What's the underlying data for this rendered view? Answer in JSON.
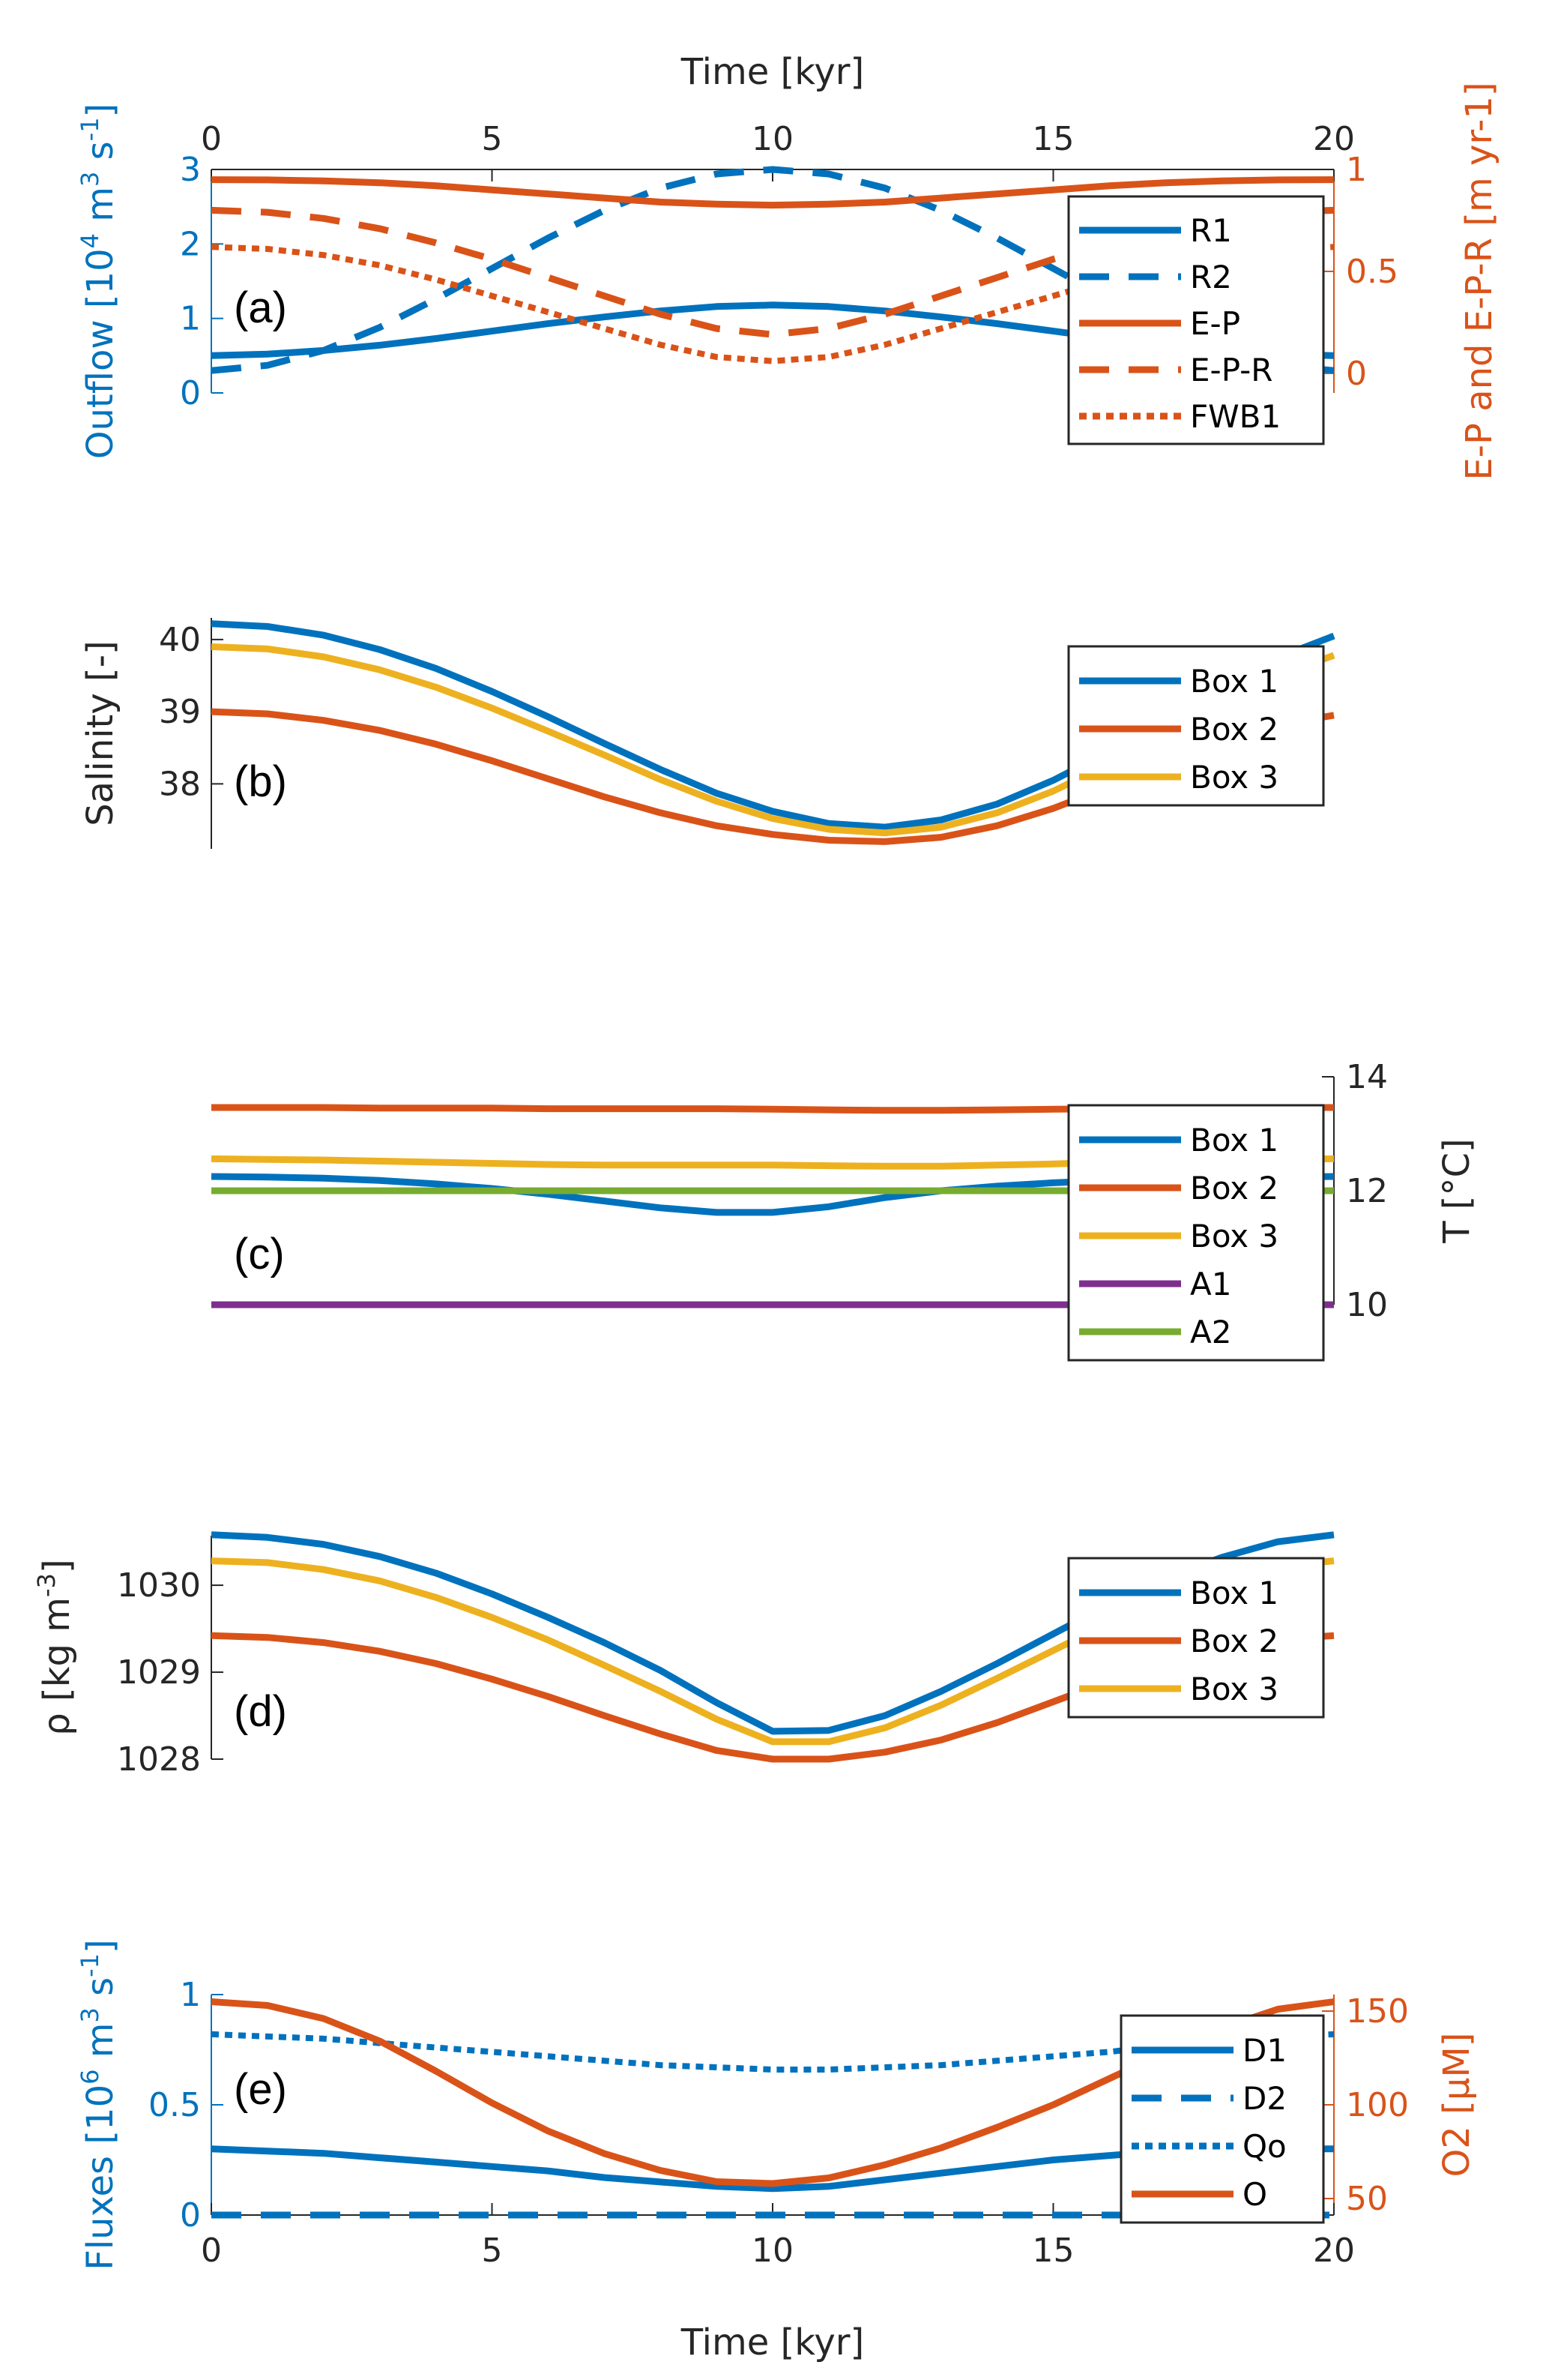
{
  "colors": {
    "blue": "#0072BD",
    "orange": "#D95319",
    "yellow": "#EDB120",
    "purple": "#7E2F8E",
    "green": "#77AC30",
    "axis": "#262626"
  },
  "chart_data": [
    {
      "id": "a",
      "type": "line",
      "panel_label": "(a)",
      "xlabel": "Time [kyr]",
      "xlabel_position": "top",
      "x_ticks": [
        0,
        5,
        10,
        15,
        20
      ],
      "xlim": [
        0,
        20
      ],
      "ylabel_left": "Outflow [10^4 m^3 s^-1]",
      "ylim_left": [
        0,
        3
      ],
      "y_ticks_left": [
        0,
        1,
        2,
        3
      ],
      "ylabel_right": "E-P and E-P-R [m yr-1]",
      "ylim_right": [
        -0.096,
        1
      ],
      "y_ticks_right": [
        0,
        0.5,
        1
      ],
      "legend": "right",
      "x": [
        0,
        1,
        2,
        3,
        4,
        5,
        6,
        7,
        8,
        9,
        10,
        11,
        12,
        13,
        14,
        15,
        16,
        17,
        18,
        19,
        20
      ],
      "series": [
        {
          "name": "R1",
          "axis": "left",
          "color": "blue",
          "style": "solid",
          "values": [
            0.5,
            0.52,
            0.57,
            0.64,
            0.73,
            0.83,
            0.93,
            1.02,
            1.1,
            1.16,
            1.18,
            1.16,
            1.1,
            1.02,
            0.93,
            0.83,
            0.73,
            0.64,
            0.57,
            0.52,
            0.5
          ]
        },
        {
          "name": "R2",
          "axis": "left",
          "color": "blue",
          "style": "dashed",
          "values": [
            0.3,
            0.37,
            0.57,
            0.88,
            1.26,
            1.67,
            2.08,
            2.45,
            2.75,
            2.94,
            3.0,
            2.94,
            2.75,
            2.45,
            2.08,
            1.67,
            1.26,
            0.88,
            0.57,
            0.37,
            0.3
          ]
        },
        {
          "name": "E-P",
          "axis": "right",
          "color": "orange",
          "style": "solid",
          "values": [
            0.95,
            0.949,
            0.944,
            0.935,
            0.92,
            0.9,
            0.88,
            0.86,
            0.84,
            0.83,
            0.825,
            0.83,
            0.84,
            0.86,
            0.88,
            0.9,
            0.92,
            0.935,
            0.944,
            0.949,
            0.95
          ]
        },
        {
          "name": "E-P-R",
          "axis": "right",
          "color": "orange",
          "style": "dashed",
          "values": [
            0.8,
            0.79,
            0.76,
            0.71,
            0.64,
            0.56,
            0.47,
            0.38,
            0.29,
            0.22,
            0.19,
            0.22,
            0.29,
            0.38,
            0.47,
            0.56,
            0.64,
            0.71,
            0.76,
            0.79,
            0.8
          ]
        },
        {
          "name": "FWB1",
          "axis": "right",
          "color": "orange",
          "style": "dotted",
          "values": [
            0.62,
            0.61,
            0.58,
            0.53,
            0.46,
            0.38,
            0.3,
            0.22,
            0.14,
            0.08,
            0.06,
            0.08,
            0.14,
            0.22,
            0.3,
            0.38,
            0.46,
            0.53,
            0.58,
            0.61,
            0.62
          ]
        }
      ]
    },
    {
      "id": "b",
      "type": "line",
      "panel_label": "(b)",
      "xlim": [
        0,
        20
      ],
      "ylabel_left": "Salinity [-]",
      "ylim_left": [
        37.1,
        40.3
      ],
      "y_ticks_left": [
        38,
        39,
        40
      ],
      "legend": "right",
      "x": [
        0,
        1,
        2,
        3,
        4,
        5,
        6,
        7,
        8,
        9,
        10,
        11,
        12,
        13,
        14,
        15,
        16,
        17,
        18,
        19,
        20
      ],
      "series": [
        {
          "name": "Box 1",
          "color": "blue",
          "style": "solid",
          "values": [
            40.22,
            40.18,
            40.06,
            39.86,
            39.6,
            39.28,
            38.93,
            38.56,
            38.2,
            37.87,
            37.62,
            37.45,
            37.4,
            37.5,
            37.72,
            38.05,
            38.45,
            38.9,
            39.35,
            39.75,
            40.05
          ]
        },
        {
          "name": "Box 2",
          "color": "orange",
          "style": "solid",
          "values": [
            39.0,
            38.97,
            38.88,
            38.74,
            38.55,
            38.32,
            38.07,
            37.82,
            37.6,
            37.42,
            37.3,
            37.22,
            37.2,
            37.26,
            37.42,
            37.66,
            37.96,
            38.28,
            38.58,
            38.82,
            38.95
          ]
        },
        {
          "name": "Box 3",
          "color": "yellow",
          "style": "solid",
          "values": [
            39.9,
            39.87,
            39.76,
            39.58,
            39.34,
            39.05,
            38.73,
            38.4,
            38.06,
            37.76,
            37.52,
            37.37,
            37.32,
            37.4,
            37.6,
            37.9,
            38.28,
            38.7,
            39.12,
            39.5,
            39.78
          ]
        }
      ]
    },
    {
      "id": "c",
      "type": "line",
      "panel_label": "(c)",
      "xlim": [
        0,
        20
      ],
      "ylabel_right": "T [°C]",
      "ylim_right": [
        10,
        14
      ],
      "y_ticks_right": [
        10,
        12,
        14
      ],
      "legend": "right",
      "x": [
        0,
        1,
        2,
        3,
        4,
        5,
        6,
        7,
        8,
        9,
        10,
        11,
        12,
        13,
        14,
        15,
        16,
        17,
        18,
        19,
        20
      ],
      "series": [
        {
          "name": "Box 1",
          "color": "blue",
          "style": "solid",
          "values": [
            12.25,
            12.24,
            12.22,
            12.18,
            12.12,
            12.04,
            11.94,
            11.82,
            11.7,
            11.62,
            11.62,
            11.72,
            11.88,
            12.0,
            12.08,
            12.14,
            12.18,
            12.21,
            12.23,
            12.24,
            12.25
          ]
        },
        {
          "name": "Box 2",
          "color": "orange",
          "style": "solid",
          "values": [
            13.46,
            13.46,
            13.46,
            13.45,
            13.45,
            13.45,
            13.44,
            13.44,
            13.44,
            13.44,
            13.43,
            13.42,
            13.41,
            13.41,
            13.42,
            13.43,
            13.44,
            13.45,
            13.45,
            13.46,
            13.46
          ]
        },
        {
          "name": "Box 3",
          "color": "yellow",
          "style": "solid",
          "values": [
            12.56,
            12.55,
            12.54,
            12.52,
            12.5,
            12.48,
            12.46,
            12.45,
            12.45,
            12.45,
            12.45,
            12.44,
            12.43,
            12.43,
            12.45,
            12.47,
            12.5,
            12.52,
            12.54,
            12.55,
            12.56
          ]
        },
        {
          "name": "A1",
          "color": "purple",
          "style": "solid",
          "values": [
            10,
            10,
            10,
            10,
            10,
            10,
            10,
            10,
            10,
            10,
            10,
            10,
            10,
            10,
            10,
            10,
            10,
            10,
            10,
            10,
            10
          ]
        },
        {
          "name": "A2",
          "color": "green",
          "style": "solid",
          "values": [
            12,
            12,
            12,
            12,
            12,
            12,
            12,
            12,
            12,
            12,
            12,
            12,
            12,
            12,
            12,
            12,
            12,
            12,
            12,
            12,
            12
          ]
        }
      ]
    },
    {
      "id": "d",
      "type": "line",
      "panel_label": "(d)",
      "xlim": [
        0,
        20
      ],
      "ylabel_left": "ρ [kg m^-3]",
      "ylim_left": [
        1028,
        1030.57
      ],
      "y_ticks_left": [
        1028,
        1029,
        1030
      ],
      "legend": "right",
      "x": [
        0,
        1,
        2,
        3,
        4,
        5,
        6,
        7,
        8,
        9,
        10,
        11,
        12,
        13,
        14,
        15,
        16,
        17,
        18,
        19,
        20
      ],
      "series": [
        {
          "name": "Box 1",
          "color": "blue",
          "style": "solid",
          "values": [
            1030.58,
            1030.55,
            1030.47,
            1030.33,
            1030.14,
            1029.9,
            1029.63,
            1029.34,
            1029.02,
            1028.65,
            1028.32,
            1028.33,
            1028.5,
            1028.78,
            1029.1,
            1029.44,
            1029.78,
            1030.08,
            1030.32,
            1030.5,
            1030.58
          ]
        },
        {
          "name": "Box 2",
          "color": "orange",
          "style": "solid",
          "values": [
            1029.42,
            1029.4,
            1029.34,
            1029.24,
            1029.1,
            1028.92,
            1028.72,
            1028.5,
            1028.29,
            1028.1,
            1028.0,
            1028.0,
            1028.08,
            1028.22,
            1028.42,
            1028.66,
            1028.9,
            1029.12,
            1029.28,
            1029.38,
            1029.42
          ]
        },
        {
          "name": "Box 3",
          "color": "yellow",
          "style": "solid",
          "values": [
            1030.28,
            1030.26,
            1030.18,
            1030.05,
            1029.86,
            1029.63,
            1029.37,
            1029.08,
            1028.78,
            1028.46,
            1028.2,
            1028.2,
            1028.36,
            1028.62,
            1028.93,
            1029.25,
            1029.57,
            1029.85,
            1030.07,
            1030.22,
            1030.28
          ]
        }
      ]
    },
    {
      "id": "e",
      "type": "line",
      "panel_label": "(e)",
      "xlabel": "Time [kyr]",
      "xlabel_position": "bottom",
      "x_ticks": [
        0,
        5,
        10,
        15,
        20
      ],
      "xlim": [
        0,
        20
      ],
      "ylabel_left": "Fluxes [10^6 m^3 s^-1]",
      "ylim_left": [
        0,
        1
      ],
      "y_ticks_left": [
        0,
        0.5,
        1
      ],
      "ylabel_right": "O2 [μM]",
      "ylim_right": [
        41.2,
        158.8
      ],
      "y_ticks_right": [
        50,
        100,
        150
      ],
      "legend": "right",
      "x": [
        0,
        1,
        2,
        3,
        4,
        5,
        6,
        7,
        8,
        9,
        10,
        11,
        12,
        13,
        14,
        15,
        16,
        17,
        18,
        19,
        20
      ],
      "series": [
        {
          "name": "D1",
          "axis": "left",
          "color": "blue",
          "style": "solid",
          "values": [
            0.3,
            0.29,
            0.28,
            0.26,
            0.24,
            0.22,
            0.2,
            0.17,
            0.15,
            0.13,
            0.12,
            0.13,
            0.16,
            0.19,
            0.22,
            0.25,
            0.27,
            0.29,
            0.3,
            0.3,
            0.3
          ]
        },
        {
          "name": "D2",
          "axis": "left",
          "color": "blue",
          "style": "dashed",
          "values": [
            0,
            0,
            0,
            0,
            0,
            0,
            0,
            0,
            0,
            0,
            0,
            0,
            0,
            0,
            0,
            0,
            0,
            0,
            0,
            0,
            0
          ]
        },
        {
          "name": "Qo",
          "axis": "left",
          "color": "blue",
          "style": "dotted",
          "values": [
            0.82,
            0.81,
            0.8,
            0.78,
            0.76,
            0.74,
            0.72,
            0.7,
            0.68,
            0.67,
            0.66,
            0.66,
            0.67,
            0.68,
            0.7,
            0.72,
            0.74,
            0.77,
            0.79,
            0.81,
            0.82
          ]
        },
        {
          "name": "O",
          "axis": "right",
          "color": "orange",
          "style": "solid",
          "values": [
            155,
            153,
            146,
            134,
            118,
            101,
            86,
            74,
            65,
            59,
            58,
            61,
            68,
            77,
            88,
            100,
            114,
            128,
            141,
            151,
            155
          ]
        }
      ]
    }
  ]
}
